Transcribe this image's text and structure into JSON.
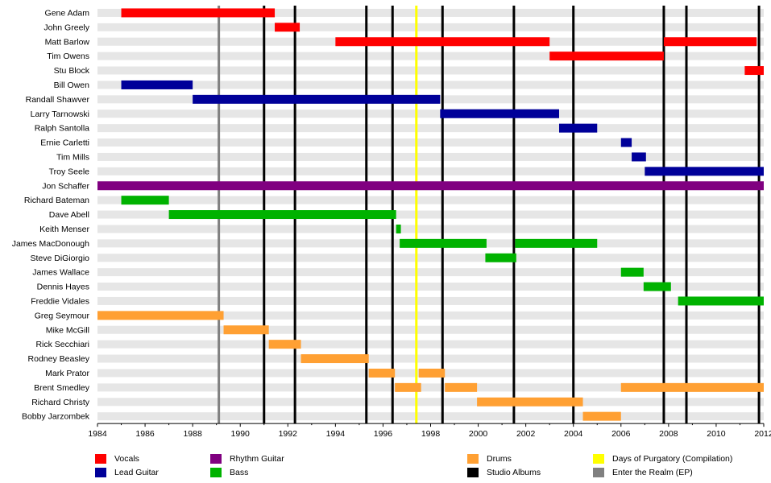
{
  "chart_data": {
    "type": "timeline",
    "title": "",
    "xlabel": "",
    "ylabel": "",
    "xlim": [
      1984,
      2012
    ],
    "x_ticks": [
      "1984",
      "1986",
      "1988",
      "1990",
      "1992",
      "1994",
      "1996",
      "1998",
      "2000",
      "2002",
      "2004",
      "2006",
      "2008",
      "2010",
      "2012"
    ],
    "roles": [
      {
        "key": "vocals",
        "name": "Vocals",
        "color": "#ff0000"
      },
      {
        "key": "lead",
        "name": "Lead Guitar",
        "color": "#000099"
      },
      {
        "key": "rhythm",
        "name": "Rhythm Guitar",
        "color": "#800080"
      },
      {
        "key": "bass",
        "name": "Bass",
        "color": "#00b200"
      },
      {
        "key": "drums",
        "name": "Drums",
        "color": "#ffa033"
      }
    ],
    "members": [
      {
        "name": "Gene Adam",
        "periods": [
          {
            "role": "vocals",
            "start": 1985.0,
            "end": 1991.45
          }
        ]
      },
      {
        "name": "John Greely",
        "periods": [
          {
            "role": "vocals",
            "start": 1991.45,
            "end": 1992.5
          }
        ]
      },
      {
        "name": "Matt Barlow",
        "periods": [
          {
            "role": "vocals",
            "start": 1994.0,
            "end": 2003.0
          },
          {
            "role": "vocals",
            "start": 2007.8,
            "end": 2011.7
          }
        ]
      },
      {
        "name": "Tim Owens",
        "periods": [
          {
            "role": "vocals",
            "start": 2003.0,
            "end": 2007.8
          }
        ]
      },
      {
        "name": "Stu Block",
        "periods": [
          {
            "role": "vocals",
            "start": 2011.2,
            "end": 2012.0
          }
        ]
      },
      {
        "name": "Bill Owen",
        "periods": [
          {
            "role": "lead",
            "start": 1985.0,
            "end": 1988.0
          }
        ]
      },
      {
        "name": "Randall Shawver",
        "periods": [
          {
            "role": "lead",
            "start": 1988.0,
            "end": 1998.4
          }
        ]
      },
      {
        "name": "Larry Tarnowski",
        "periods": [
          {
            "role": "lead",
            "start": 1998.4,
            "end": 2003.4
          }
        ]
      },
      {
        "name": "Ralph Santolla",
        "periods": [
          {
            "role": "lead",
            "start": 2003.4,
            "end": 2005.0
          }
        ]
      },
      {
        "name": "Ernie Carletti",
        "periods": [
          {
            "role": "lead",
            "start": 2006.0,
            "end": 2006.45
          }
        ]
      },
      {
        "name": "Tim Mills",
        "periods": [
          {
            "role": "lead",
            "start": 2006.45,
            "end": 2007.05
          }
        ]
      },
      {
        "name": "Troy Seele",
        "periods": [
          {
            "role": "lead",
            "start": 2007.0,
            "end": 2012.0
          }
        ]
      },
      {
        "name": "Jon Schaffer",
        "periods": [
          {
            "role": "rhythm",
            "start": 1984.0,
            "end": 2012.0
          }
        ]
      },
      {
        "name": "Richard Bateman",
        "periods": [
          {
            "role": "bass",
            "start": 1985.0,
            "end": 1987.0
          }
        ]
      },
      {
        "name": "Dave Abell",
        "periods": [
          {
            "role": "bass",
            "start": 1987.0,
            "end": 1996.55
          }
        ]
      },
      {
        "name": "Keith Menser",
        "periods": [
          {
            "role": "bass",
            "start": 1996.55,
            "end": 1996.75
          }
        ]
      },
      {
        "name": "James MacDonough",
        "periods": [
          {
            "role": "bass",
            "start": 1996.7,
            "end": 2000.35
          },
          {
            "role": "bass",
            "start": 2001.55,
            "end": 2005.0
          }
        ]
      },
      {
        "name": "Steve DiGiorgio",
        "periods": [
          {
            "role": "bass",
            "start": 2000.3,
            "end": 2001.6
          }
        ]
      },
      {
        "name": "James Wallace",
        "periods": [
          {
            "role": "bass",
            "start": 2006.0,
            "end": 2006.95
          }
        ]
      },
      {
        "name": "Dennis Hayes",
        "periods": [
          {
            "role": "bass",
            "start": 2006.95,
            "end": 2008.1
          }
        ]
      },
      {
        "name": "Freddie Vidales",
        "periods": [
          {
            "role": "bass",
            "start": 2008.4,
            "end": 2012.0
          }
        ]
      },
      {
        "name": "Greg Seymour",
        "periods": [
          {
            "role": "drums",
            "start": 1984.0,
            "end": 1989.3
          }
        ]
      },
      {
        "name": "Mike McGill",
        "periods": [
          {
            "role": "drums",
            "start": 1989.3,
            "end": 1991.2
          }
        ]
      },
      {
        "name": "Rick Secchiari",
        "periods": [
          {
            "role": "drums",
            "start": 1991.2,
            "end": 1992.55
          }
        ]
      },
      {
        "name": "Rodney Beasley",
        "periods": [
          {
            "role": "drums",
            "start": 1992.55,
            "end": 1995.4
          }
        ]
      },
      {
        "name": "Mark Prator",
        "periods": [
          {
            "role": "drums",
            "start": 1995.4,
            "end": 1996.5
          },
          {
            "role": "drums",
            "start": 1997.5,
            "end": 1998.6
          }
        ]
      },
      {
        "name": "Brent Smedley",
        "periods": [
          {
            "role": "drums",
            "start": 1996.5,
            "end": 1997.6
          },
          {
            "role": "drums",
            "start": 1998.6,
            "end": 1999.95
          },
          {
            "role": "drums",
            "start": 2006.0,
            "end": 2012.0
          }
        ]
      },
      {
        "name": "Richard Christy",
        "periods": [
          {
            "role": "drums",
            "start": 1999.95,
            "end": 2004.4
          }
        ]
      },
      {
        "name": "Bobby Jarzombek",
        "periods": [
          {
            "role": "drums",
            "start": 2004.4,
            "end": 2006.0
          }
        ]
      }
    ],
    "events": [
      {
        "type": "ep",
        "name": "Enter the Realm (EP)",
        "date": 1989.1,
        "color": "#808080"
      },
      {
        "type": "album",
        "name": "Studio Albums",
        "date": 1991.0,
        "color": "#000000"
      },
      {
        "type": "album",
        "name": "Studio Albums",
        "date": 1992.3,
        "color": "#000000"
      },
      {
        "type": "album",
        "name": "Studio Albums",
        "date": 1995.3,
        "color": "#000000"
      },
      {
        "type": "album",
        "name": "Studio Albums",
        "date": 1996.4,
        "color": "#000000"
      },
      {
        "type": "compilation",
        "name": "Days of Purgatory (Compilation)",
        "date": 1997.4,
        "color": "#ffff00"
      },
      {
        "type": "album",
        "name": "Studio Albums",
        "date": 1998.5,
        "color": "#000000"
      },
      {
        "type": "album",
        "name": "Studio Albums",
        "date": 2001.5,
        "color": "#000000"
      },
      {
        "type": "album",
        "name": "Studio Albums",
        "date": 2004.0,
        "color": "#000000"
      },
      {
        "type": "album",
        "name": "Studio Albums",
        "date": 2007.8,
        "color": "#000000"
      },
      {
        "type": "album",
        "name": "Studio Albums",
        "date": 2008.75,
        "color": "#000000"
      },
      {
        "type": "album",
        "name": "Studio Albums",
        "date": 2011.8,
        "color": "#000000"
      }
    ]
  },
  "legend": [
    {
      "label": "Vocals",
      "color": "#ff0000"
    },
    {
      "label": "Lead Guitar",
      "color": "#000099"
    },
    {
      "label": "Rhythm Guitar",
      "color": "#800080"
    },
    {
      "label": "Bass",
      "color": "#00b200"
    },
    {
      "label": "Drums",
      "color": "#ffa033"
    },
    {
      "label": "Studio Albums",
      "color": "#000000"
    },
    {
      "label": "Days of Purgatory (Compilation)",
      "color": "#ffff00"
    },
    {
      "label": "Enter the Realm (EP)",
      "color": "#808080"
    }
  ]
}
